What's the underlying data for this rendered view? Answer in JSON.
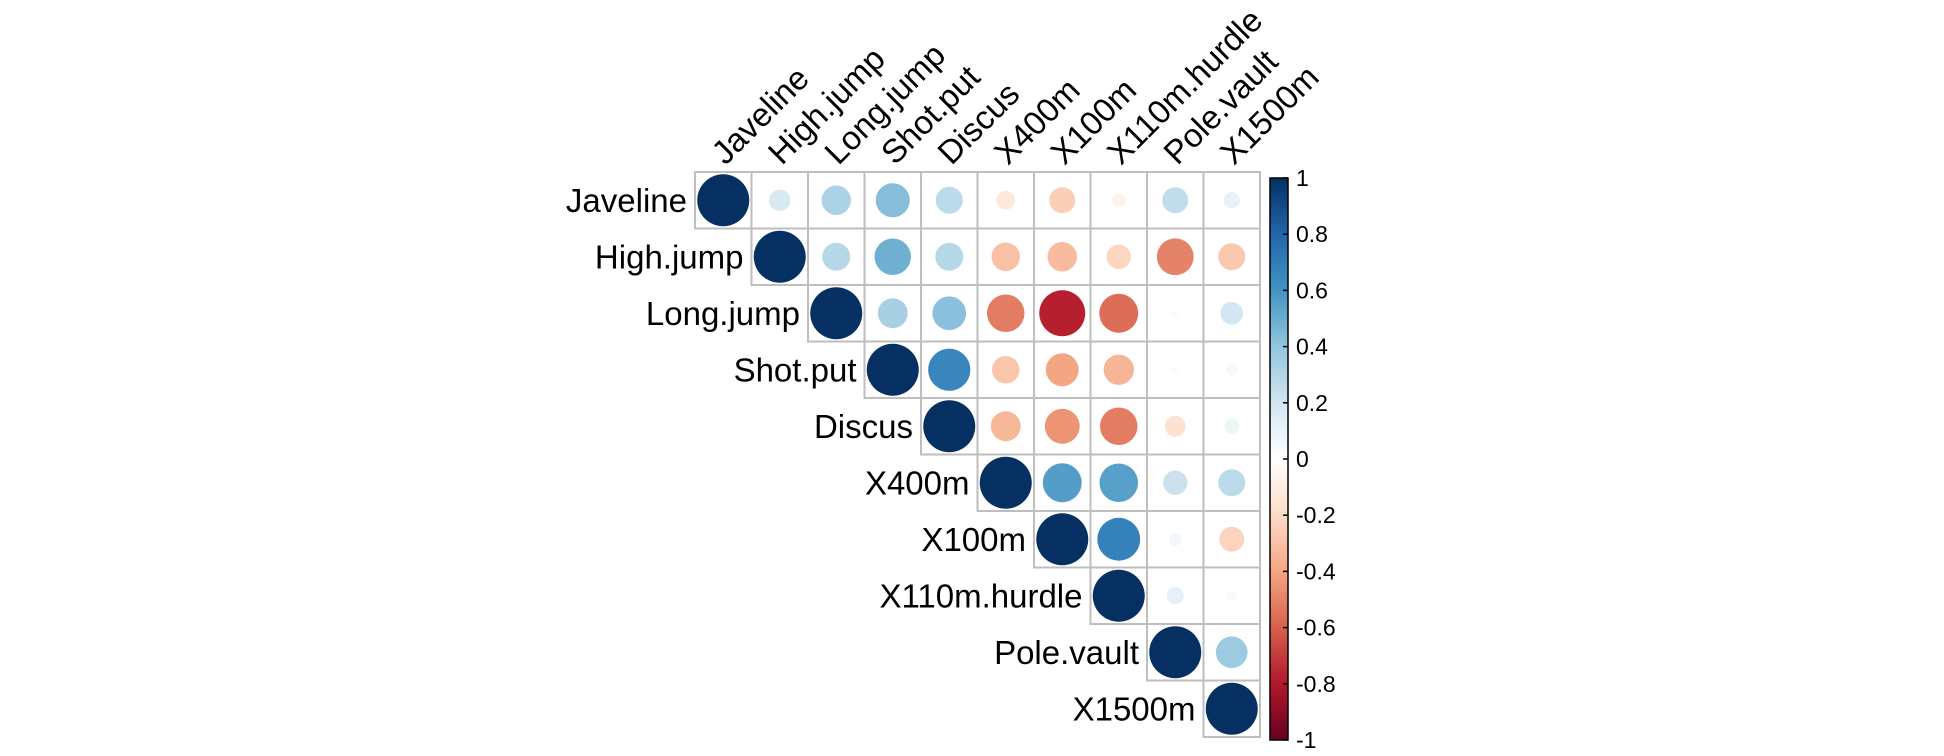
{
  "chart_data": {
    "type": "heatmap",
    "subtype": "correlation-upper-triangle",
    "variables": [
      "Javeline",
      "High.jump",
      "Long.jump",
      "Shot.put",
      "Discus",
      "X400m",
      "X100m",
      "X110m.hurdle",
      "Pole.vault",
      "X1500m"
    ],
    "matrix": [
      [
        1,
        0.17,
        0.32,
        0.43,
        0.27,
        -0.13,
        -0.25,
        -0.07,
        0.25,
        0.1
      ],
      [
        0.17,
        1,
        0.29,
        0.49,
        0.29,
        -0.3,
        -0.32,
        -0.22,
        -0.5,
        -0.27
      ],
      [
        0.32,
        0.29,
        1,
        0.33,
        0.42,
        -0.52,
        -0.78,
        -0.56,
        -0.02,
        0.19
      ],
      [
        0.43,
        0.49,
        0.33,
        1,
        0.66,
        -0.28,
        -0.4,
        -0.34,
        -0.02,
        -0.05
      ],
      [
        0.27,
        0.29,
        0.42,
        0.66,
        1,
        -0.33,
        -0.45,
        -0.52,
        -0.16,
        0.08
      ],
      [
        -0.13,
        -0.3,
        -0.52,
        -0.28,
        -0.33,
        1,
        0.56,
        0.55,
        0.22,
        0.27
      ],
      [
        -0.25,
        -0.32,
        -0.78,
        -0.4,
        -0.45,
        0.56,
        1,
        0.68,
        0.06,
        -0.23
      ],
      [
        -0.07,
        -0.22,
        -0.56,
        -0.34,
        -0.52,
        0.55,
        0.68,
        1,
        0.11,
        -0.04
      ],
      [
        0.25,
        -0.5,
        -0.02,
        -0.02,
        -0.16,
        0.22,
        0.06,
        0.11,
        1,
        0.37
      ],
      [
        0.1,
        -0.27,
        0.19,
        -0.05,
        0.08,
        0.27,
        -0.23,
        -0.04,
        0.37,
        1
      ]
    ],
    "colorbar": {
      "range": [
        -1,
        1
      ],
      "ticks": [
        "1",
        "0.8",
        "0.6",
        "0.4",
        "0.2",
        "0",
        "-0.2",
        "-0.4",
        "-0.6",
        "-0.8",
        "-1"
      ],
      "colors": [
        "#67001F",
        "#B2182B",
        "#D6604D",
        "#F4A582",
        "#FDDBC7",
        "#FFFFFF",
        "#D1E5F0",
        "#92C5DE",
        "#4393C3",
        "#2166AC",
        "#053061"
      ]
    },
    "glyph": "circle",
    "grid": true,
    "legend_position": "right"
  }
}
